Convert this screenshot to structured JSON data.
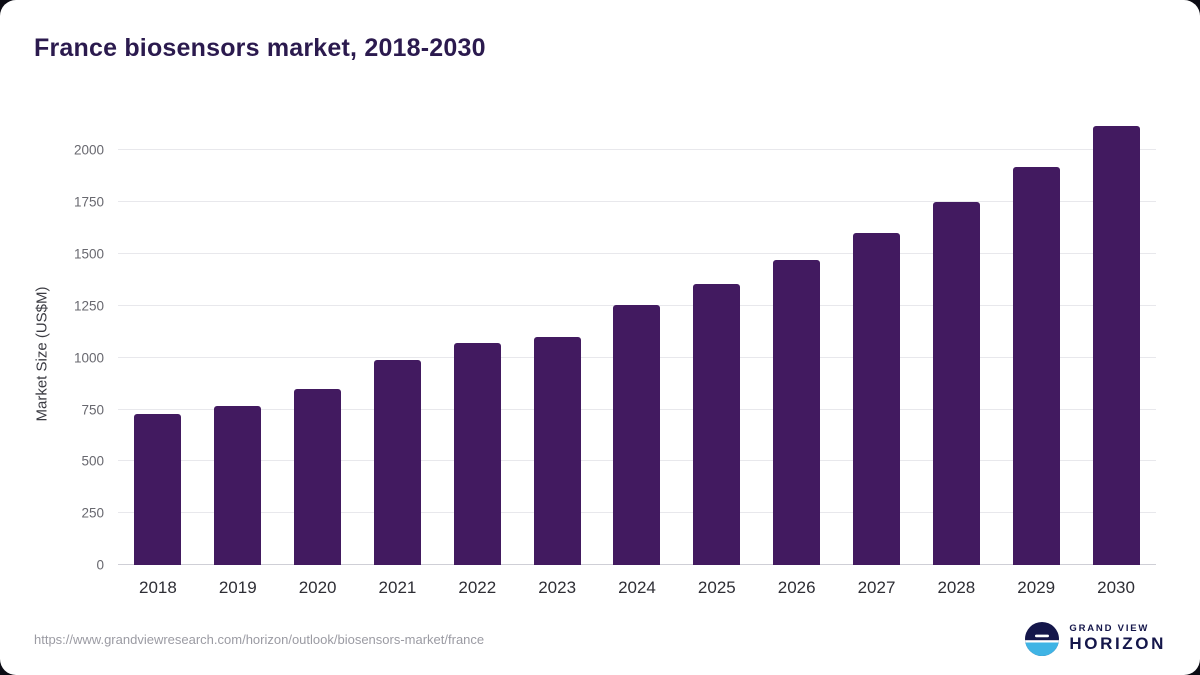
{
  "title": "France biosensors market, 2018-2030",
  "footer": {
    "source_url": "https://www.grandviewresearch.com/horizon/outlook/biosensors-market/france",
    "brand_line1": "GRAND VIEW",
    "brand_line2": "HORIZON"
  },
  "colors": {
    "bar": "#421a60",
    "title": "#2b1a4e",
    "navy": "#14164a",
    "light_blue": "#3fb4e5",
    "gridline": "#e8e8ec"
  },
  "chart_data": {
    "type": "bar",
    "title": "France biosensors market, 2018-2030",
    "categories": [
      "2018",
      "2019",
      "2020",
      "2021",
      "2022",
      "2023",
      "2024",
      "2025",
      "2026",
      "2027",
      "2028",
      "2029",
      "2030"
    ],
    "values": [
      730,
      765,
      850,
      990,
      1070,
      1100,
      1255,
      1355,
      1470,
      1600,
      1750,
      1920,
      2120
    ],
    "xlabel": "",
    "ylabel": "Market Size (US$M)",
    "ylim": [
      0,
      2200
    ],
    "yticks": [
      0,
      250,
      500,
      750,
      1000,
      1250,
      1500,
      1750,
      2000
    ],
    "grid": true,
    "legend": false,
    "bar_color": "#421a60"
  }
}
